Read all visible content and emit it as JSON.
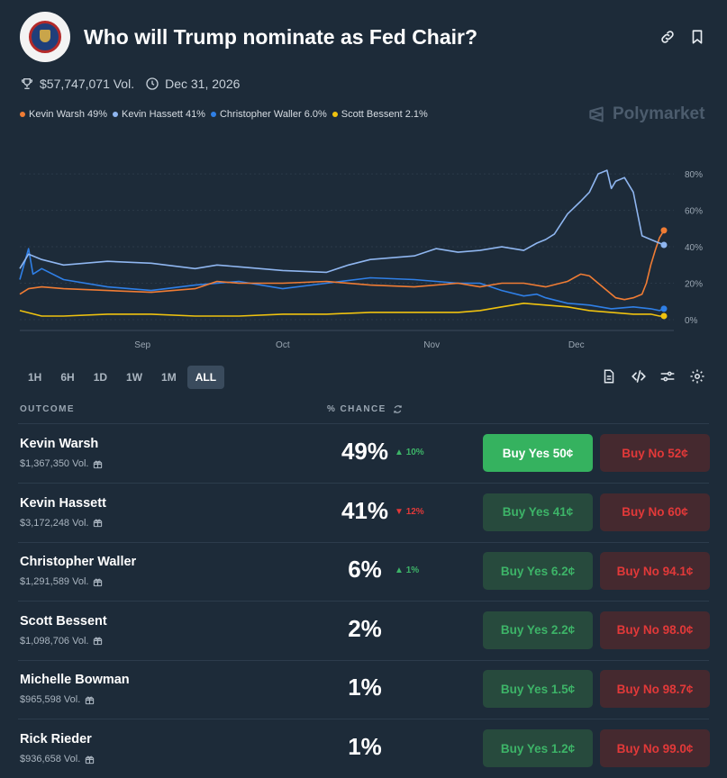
{
  "market": {
    "title": "Who will Trump nominate as Fed Chair?",
    "volume": "$57,747,071 Vol.",
    "end_date": "Dec 31, 2026",
    "brand": "Polymarket"
  },
  "legend": [
    {
      "label": "Kevin Warsh 49%",
      "color": "#f07c34"
    },
    {
      "label": "Kevin Hassett 41%",
      "color": "#8fb6f0"
    },
    {
      "label": "Christopher Waller 6.0%",
      "color": "#2f7fe6"
    },
    {
      "label": "Scott Bessent 2.1%",
      "color": "#efc20f"
    }
  ],
  "chart_data": {
    "type": "line",
    "x_ticks": [
      "Sep",
      "Oct",
      "Nov",
      "Dec"
    ],
    "y_ticks": [
      "80%",
      "60%",
      "40%",
      "20%",
      "0%"
    ],
    "ylim": [
      0,
      85
    ],
    "x_domain": [
      0,
      147
    ],
    "series": [
      {
        "name": "Kevin Warsh",
        "color": "#f07c34",
        "x": [
          0,
          2,
          5,
          10,
          20,
          30,
          40,
          45,
          50,
          60,
          70,
          80,
          90,
          100,
          105,
          110,
          115,
          120,
          125,
          128,
          130,
          132,
          134,
          136,
          138,
          140,
          141,
          142,
          143,
          144,
          145,
          146,
          147
        ],
        "values": [
          14,
          17,
          18,
          17,
          16,
          15,
          17,
          21,
          20,
          20,
          21,
          19,
          18,
          20,
          18,
          20,
          20,
          18,
          21,
          25,
          24,
          20,
          16,
          12,
          11,
          12,
          13,
          14,
          20,
          30,
          38,
          45,
          49
        ]
      },
      {
        "name": "Kevin Hassett",
        "color": "#8fb6f0",
        "x": [
          0,
          2,
          5,
          10,
          20,
          30,
          40,
          45,
          50,
          60,
          70,
          75,
          80,
          90,
          95,
          100,
          105,
          110,
          115,
          118,
          120,
          122,
          125,
          128,
          130,
          132,
          134,
          135,
          136,
          138,
          140,
          141,
          142,
          144,
          146,
          147
        ],
        "values": [
          28,
          36,
          33,
          30,
          32,
          31,
          28,
          30,
          29,
          27,
          26,
          30,
          33,
          35,
          39,
          37,
          38,
          40,
          38,
          42,
          44,
          47,
          58,
          65,
          70,
          80,
          82,
          72,
          76,
          78,
          70,
          58,
          46,
          44,
          42,
          41
        ]
      },
      {
        "name": "Christopher Waller",
        "color": "#2f7fe6",
        "x": [
          0,
          2,
          3,
          5,
          10,
          20,
          30,
          40,
          50,
          60,
          70,
          80,
          90,
          100,
          105,
          110,
          115,
          118,
          120,
          125,
          130,
          135,
          140,
          144,
          146,
          147
        ],
        "values": [
          22,
          39,
          25,
          28,
          22,
          18,
          16,
          19,
          21,
          17,
          20,
          23,
          22,
          20,
          20,
          16,
          13,
          14,
          12,
          9,
          8,
          6,
          7,
          6,
          5,
          6
        ]
      },
      {
        "name": "Scott Bessent",
        "color": "#efc20f",
        "x": [
          0,
          5,
          10,
          20,
          30,
          40,
          50,
          60,
          70,
          80,
          90,
          95,
          100,
          105,
          110,
          115,
          120,
          125,
          130,
          135,
          140,
          144,
          146,
          147
        ],
        "values": [
          5,
          2,
          2,
          3,
          3,
          2,
          2,
          3,
          3,
          4,
          4,
          4,
          4,
          5,
          7,
          9,
          8,
          7,
          5,
          4,
          3,
          3,
          2,
          2
        ]
      }
    ]
  },
  "timeframes": {
    "h1": "1H",
    "h6": "6H",
    "d1": "1D",
    "w1": "1W",
    "m1": "1M",
    "all": "ALL"
  },
  "table": {
    "col_outcome": "OUTCOME",
    "col_chance": "% CHANCE",
    "rows": [
      {
        "name": "Kevin Warsh",
        "volume": "$1,367,350 Vol.",
        "chance": "49%",
        "change": "10%",
        "direction": "up",
        "buy_yes": "Buy Yes 50¢",
        "buy_no": "Buy No 52¢"
      },
      {
        "name": "Kevin Hassett",
        "volume": "$3,172,248 Vol.",
        "chance": "41%",
        "change": "12%",
        "direction": "down",
        "buy_yes": "Buy Yes 41¢",
        "buy_no": "Buy No 60¢"
      },
      {
        "name": "Christopher Waller",
        "volume": "$1,291,589 Vol.",
        "chance": "6%",
        "change": "1%",
        "direction": "up",
        "buy_yes": "Buy Yes 6.2¢",
        "buy_no": "Buy No 94.1¢"
      },
      {
        "name": "Scott Bessent",
        "volume": "$1,098,706 Vol.",
        "chance": "2%",
        "change": "",
        "direction": "",
        "buy_yes": "Buy Yes 2.2¢",
        "buy_no": "Buy No 98.0¢"
      },
      {
        "name": "Michelle Bowman",
        "volume": "$965,598 Vol.",
        "chance": "1%",
        "change": "",
        "direction": "",
        "buy_yes": "Buy Yes 1.5¢",
        "buy_no": "Buy No 98.7¢"
      },
      {
        "name": "Rick Rieder",
        "volume": "$936,658 Vol.",
        "chance": "1%",
        "change": "",
        "direction": "",
        "buy_yes": "Buy Yes 1.2¢",
        "buy_no": "Buy No 99.0¢"
      }
    ]
  }
}
